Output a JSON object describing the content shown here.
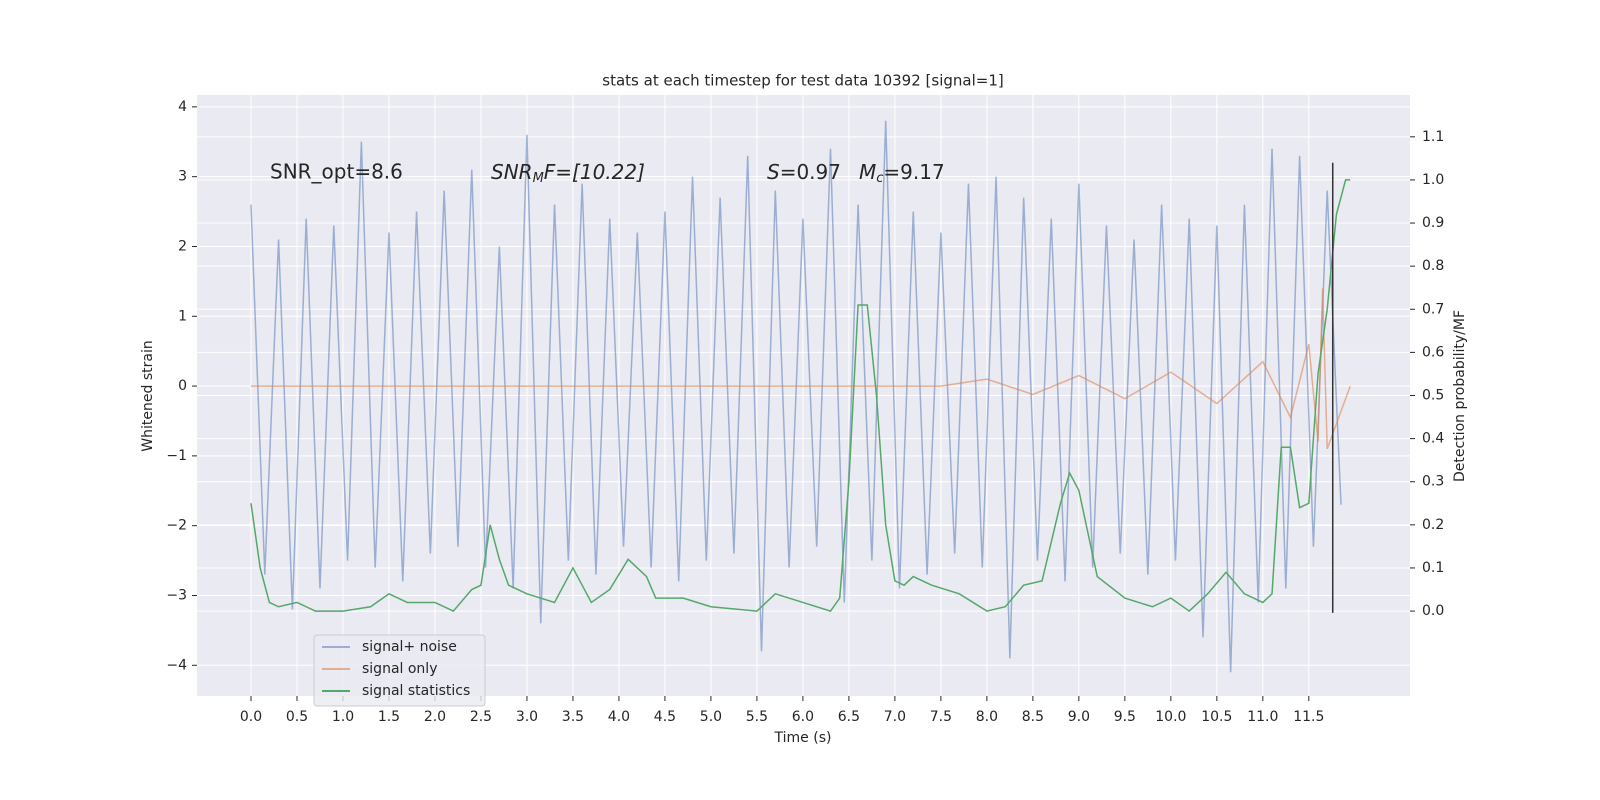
{
  "chart_data": {
    "type": "line",
    "title": "stats at each timestep for test data 10392 [signal=1]",
    "xlabel": "Time (s)",
    "ylabel": "Whitened strain",
    "y2label": "Detection probability/MF",
    "annotations": {
      "snr_opt": "SNR_opt=8.6",
      "snr_mf": {
        "base": "SNR",
        "sub": "M",
        "rest": "F=[10.22]"
      },
      "stats": {
        "s": "S",
        "s_rest": "=0.97",
        "m": "M",
        "m_sub": "c",
        "m_rest": "=9.17"
      }
    },
    "xlim": [
      -0.587,
      12.6
    ],
    "xticks": [
      {
        "value": 0,
        "label": "0.0"
      },
      0.5,
      {
        "value": 1,
        "label": "1.0"
      },
      1.5,
      {
        "value": 2,
        "label": "2.0"
      },
      2.5,
      {
        "value": 3,
        "label": "3.0"
      },
      3.5,
      {
        "value": 4,
        "label": "4.0"
      },
      4.5,
      {
        "value": 5,
        "label": "5.0"
      },
      5.5,
      {
        "value": 6,
        "label": "6.0"
      },
      6.5,
      {
        "value": 7,
        "label": "7.0"
      },
      7.5,
      {
        "value": 8,
        "label": "8.0"
      },
      8.5,
      {
        "value": 9,
        "label": "9.0"
      },
      9.5,
      {
        "value": 10,
        "label": "10.0"
      },
      10.5,
      {
        "value": 11,
        "label": "11.0"
      },
      11.5
    ],
    "ylim": [
      -4.44,
      4.17
    ],
    "yticks": [
      {
        "value": -4,
        "label": "−4"
      },
      {
        "value": -3,
        "label": "−3"
      },
      {
        "value": -2,
        "label": "−2"
      },
      {
        "value": -1,
        "label": "−1"
      },
      0,
      1,
      2,
      3,
      4
    ],
    "y2lim": [
      -0.197,
      1.197
    ],
    "y2ticks": [
      {
        "value": 0,
        "label": "0.0"
      },
      0.1,
      0.2,
      0.3,
      0.4,
      0.5,
      0.6,
      0.7,
      0.8,
      0.9,
      {
        "value": 1,
        "label": "1.0"
      },
      1.1
    ],
    "grid": true,
    "legend": "lower left",
    "vline": {
      "x": 11.76,
      "ymin": -3.25,
      "ymax": 3.2,
      "color": "#333333"
    },
    "series": [
      {
        "name": "signal+ noise",
        "color": "#4c72b0",
        "opacity": 0.5,
        "x": [
          0,
          0.15,
          0.3,
          0.45,
          0.6,
          0.75,
          0.9,
          1.05,
          1.2,
          1.35,
          1.5,
          1.65,
          1.8,
          1.95,
          2.1,
          2.25,
          2.4,
          2.55,
          2.7,
          2.85,
          3,
          3.15,
          3.3,
          3.45,
          3.6,
          3.75,
          3.9,
          4.05,
          4.2,
          4.35,
          4.5,
          4.65,
          4.8,
          4.95,
          5.1,
          5.25,
          5.4,
          5.55,
          5.7,
          5.85,
          6,
          6.15,
          6.3,
          6.45,
          6.6,
          6.75,
          6.9,
          7.05,
          7.2,
          7.35,
          7.5,
          7.65,
          7.8,
          7.95,
          8.1,
          8.25,
          8.4,
          8.55,
          8.7,
          8.85,
          9,
          9.15,
          9.3,
          9.45,
          9.6,
          9.75,
          9.9,
          10.05,
          10.2,
          10.35,
          10.5,
          10.65,
          10.8,
          10.95,
          11.1,
          11.25,
          11.4,
          11.55,
          11.7,
          11.85
        ],
        "values": [
          2.6,
          -2.7,
          2.1,
          -3.2,
          2.4,
          -2.9,
          2.3,
          -2.5,
          3.5,
          -2.6,
          2.2,
          -2.8,
          2.5,
          -2.4,
          2.8,
          -2.3,
          3.1,
          -2.6,
          2.0,
          -2.9,
          3.6,
          -3.4,
          2.6,
          -2.5,
          2.9,
          -2.7,
          2.4,
          -2.3,
          2.2,
          -2.6,
          2.5,
          -2.8,
          3.0,
          -2.5,
          2.7,
          -2.4,
          3.3,
          -3.8,
          2.8,
          -2.6,
          2.4,
          -2.3,
          3.4,
          -3.1,
          2.6,
          -2.5,
          3.8,
          -2.9,
          2.5,
          -2.7,
          2.2,
          -2.4,
          2.9,
          -2.6,
          3.0,
          -3.9,
          2.7,
          -2.5,
          2.4,
          -2.8,
          2.9,
          -2.6,
          2.3,
          -2.4,
          2.1,
          -2.7,
          2.6,
          -2.5,
          2.4,
          -3.6,
          2.3,
          -4.1,
          2.6,
          -3.1,
          3.4,
          -2.9,
          3.3,
          -2.3,
          2.8,
          -1.7
        ]
      },
      {
        "name": "signal only",
        "color": "#dd8452",
        "opacity": 0.6,
        "x": [
          0,
          7.5,
          8.0,
          8.5,
          9.0,
          9.5,
          10.0,
          10.5,
          11.0,
          11.3,
          11.5,
          11.6,
          11.65,
          11.7,
          11.95
        ],
        "values": [
          0,
          0,
          0.1,
          -0.12,
          0.15,
          -0.18,
          0.2,
          -0.25,
          0.35,
          -0.45,
          0.6,
          -0.8,
          1.4,
          -0.9,
          0
        ]
      },
      {
        "name": "signal statistics",
        "color": "#55a868",
        "opacity": 1,
        "axis": "y2",
        "x": [
          0,
          0.1,
          0.2,
          0.3,
          0.5,
          0.6,
          0.7,
          1.0,
          1.3,
          1.5,
          1.7,
          2.0,
          2.2,
          2.4,
          2.5,
          2.6,
          2.7,
          2.8,
          3.0,
          3.3,
          3.5,
          3.7,
          3.9,
          4.1,
          4.3,
          4.4,
          4.7,
          5.0,
          5.5,
          5.7,
          6.0,
          6.3,
          6.4,
          6.5,
          6.6,
          6.7,
          6.8,
          6.9,
          7.0,
          7.1,
          7.2,
          7.4,
          7.7,
          8.0,
          8.2,
          8.4,
          8.6,
          8.8,
          8.9,
          9.0,
          9.2,
          9.5,
          9.8,
          10.0,
          10.2,
          10.4,
          10.6,
          10.8,
          11.0,
          11.1,
          11.2,
          11.3,
          11.4,
          11.5,
          11.6,
          11.7,
          11.8,
          11.9,
          11.95
        ],
        "values": [
          0.25,
          0.1,
          0.02,
          0.01,
          0.02,
          0.01,
          0,
          0,
          0.01,
          0.04,
          0.02,
          0.02,
          0,
          0.05,
          0.06,
          0.2,
          0.12,
          0.06,
          0.04,
          0.02,
          0.1,
          0.02,
          0.05,
          0.12,
          0.08,
          0.03,
          0.03,
          0.01,
          0,
          0.04,
          0.02,
          0,
          0.03,
          0.3,
          0.71,
          0.71,
          0.5,
          0.2,
          0.07,
          0.06,
          0.08,
          0.06,
          0.04,
          0,
          0.01,
          0.06,
          0.07,
          0.25,
          0.32,
          0.28,
          0.08,
          0.03,
          0.01,
          0.03,
          0,
          0.04,
          0.09,
          0.04,
          0.02,
          0.04,
          0.38,
          0.38,
          0.24,
          0.25,
          0.55,
          0.7,
          0.92,
          1,
          1
        ]
      }
    ]
  }
}
